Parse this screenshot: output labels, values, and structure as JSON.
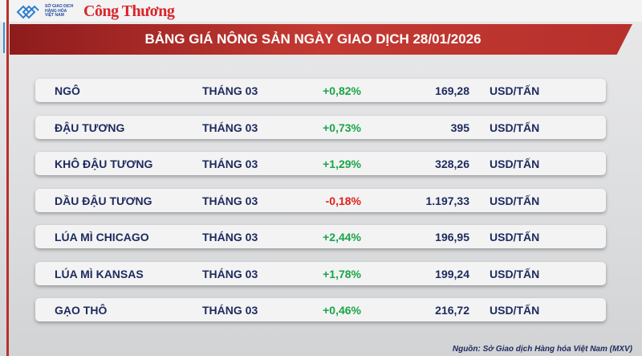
{
  "logo": {
    "org_text": "SỞ GIAO DỊCH HÀNG HÓA VIỆT NAM",
    "brand": "Công Thương"
  },
  "title": "BẢNG GIÁ NÔNG SẢN NGÀY GIAO DỊCH 28/01/2026",
  "rows": [
    {
      "name": "NGÔ",
      "month": "THÁNG 03",
      "change": "+0,82%",
      "price": "169,28",
      "unit": "USD/TẤN",
      "trend": "up"
    },
    {
      "name": "ĐẬU TƯƠNG",
      "month": "THÁNG 03",
      "change": "+0,73%",
      "price": "395",
      "unit": "USD/TẤN",
      "trend": "up"
    },
    {
      "name": "KHÔ ĐẬU TƯƠNG",
      "month": "THÁNG 03",
      "change": "+1,29%",
      "price": "328,26",
      "unit": "USD/TẤN",
      "trend": "up"
    },
    {
      "name": "DẦU ĐẬU TƯƠNG",
      "month": "THÁNG 03",
      "change": "-0,18%",
      "price": "1.197,33",
      "unit": "USD/TẤN",
      "trend": "down"
    },
    {
      "name": "LÚA MÌ CHICAGO",
      "month": "THÁNG 03",
      "change": "+2,44%",
      "price": "196,95",
      "unit": "USD/TẤN",
      "trend": "up"
    },
    {
      "name": "LÚA MÌ KANSAS",
      "month": "THÁNG 03",
      "change": "+1,78%",
      "price": "199,24",
      "unit": "USD/TẤN",
      "trend": "up"
    },
    {
      "name": "GẠO THÔ",
      "month": "THÁNG 03",
      "change": "+0,46%",
      "price": "216,72",
      "unit": "USD/TẤN",
      "trend": "up"
    }
  ],
  "source": "Nguồn: Sở Giao dịch Hàng hóa Việt Nam (MXV)",
  "colors": {
    "header": "#b7302b",
    "positive": "#19a548",
    "negative": "#e0201b",
    "text": "#1d2a5e"
  }
}
